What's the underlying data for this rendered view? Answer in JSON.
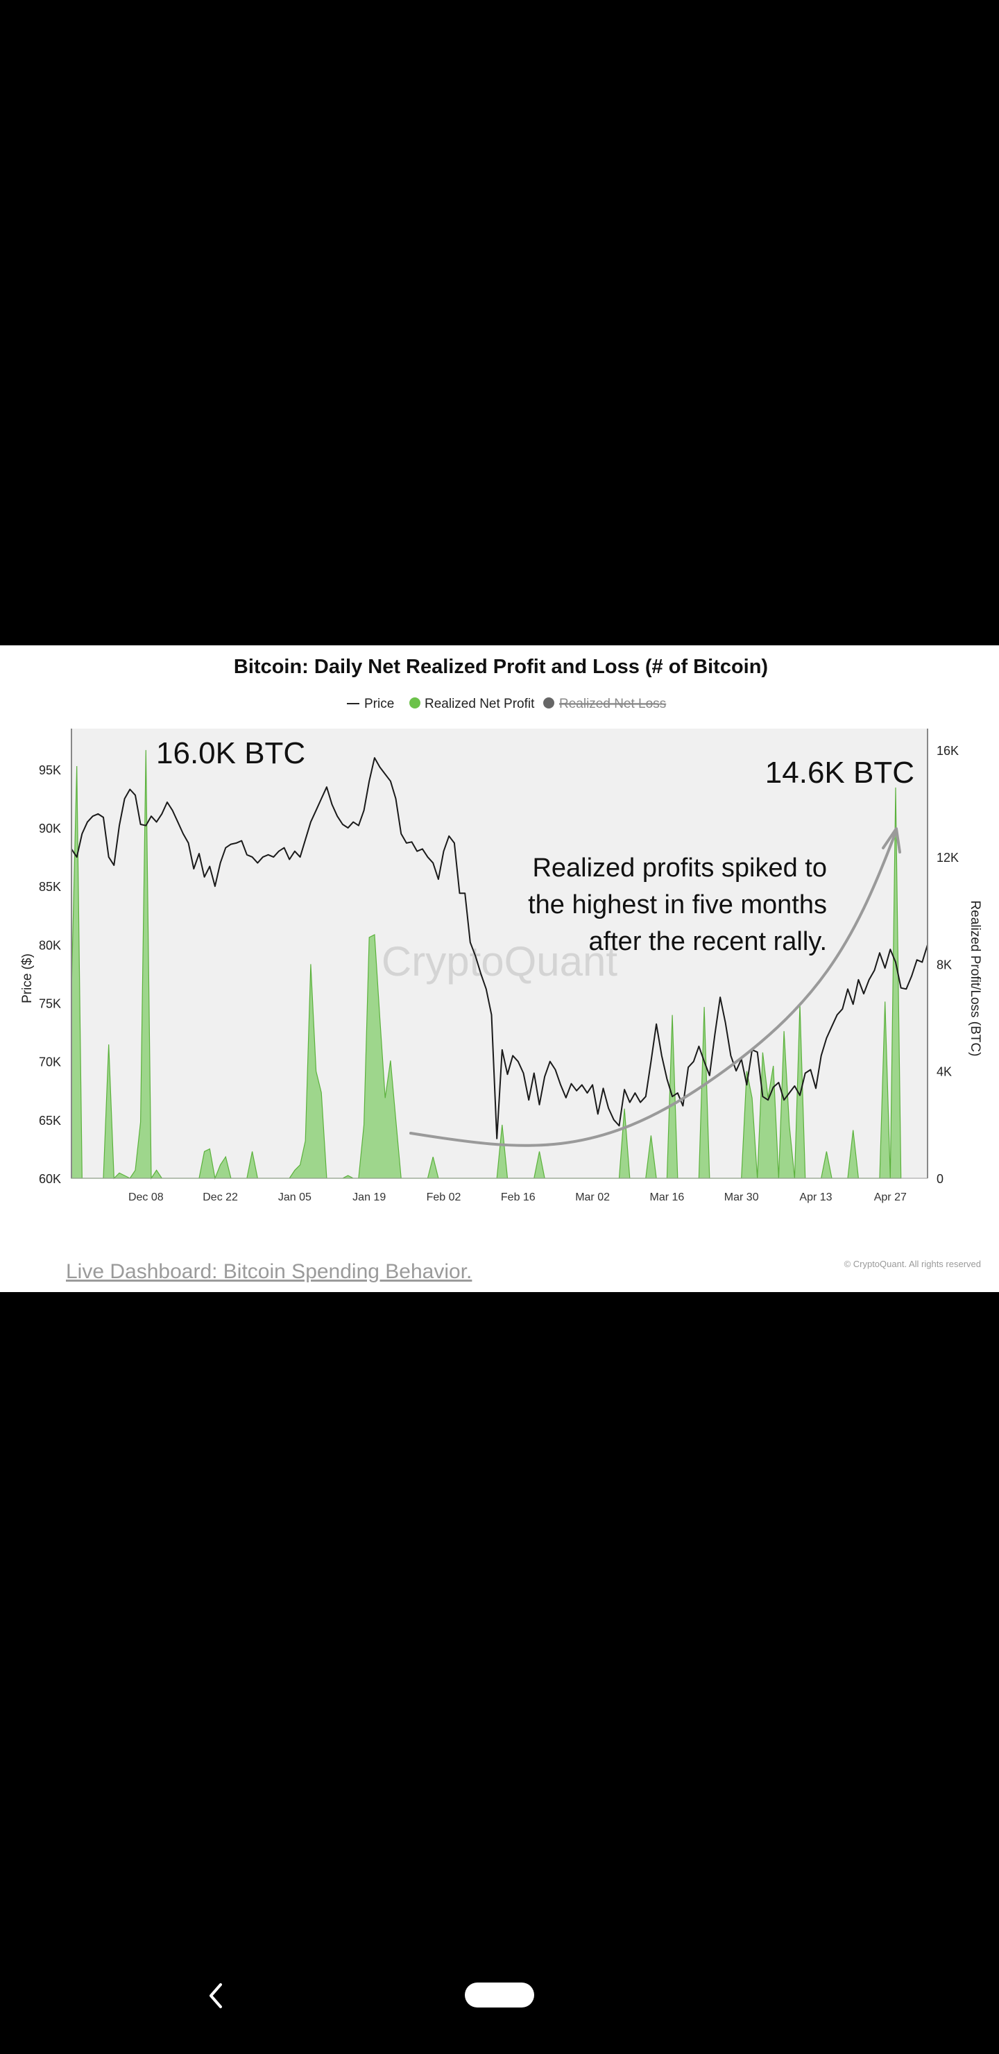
{
  "chart_data": {
    "type": "line+area",
    "title": "Bitcoin: Daily Net Realized Profit and Loss (# of Bitcoin)",
    "legend": [
      {
        "label": "Price",
        "marker": "line",
        "color": "#222222"
      },
      {
        "label": "Realized Net Profit",
        "marker": "dot",
        "color": "#6cc24a"
      },
      {
        "label": "Realized Net Loss",
        "marker": "dot",
        "color": "#666666",
        "hidden": true
      }
    ],
    "watermark": "CryptoQuant",
    "ylabel_left": "Price ($)",
    "ylabel_right": "Realized Profit/Loss (BTC)",
    "y_left_ticks": [
      "95K",
      "90K",
      "85K",
      "80K",
      "75K",
      "70K",
      "65K",
      "60K"
    ],
    "y_left_range": [
      60000,
      98500
    ],
    "y_right_ticks": [
      "16K",
      "12K",
      "8K",
      "4K",
      "0"
    ],
    "y_right_range": [
      0,
      16800
    ],
    "x_ticks": [
      "Dec 08",
      "Dec 22",
      "Jan 05",
      "Jan 19",
      "Feb 02",
      "Feb 16",
      "Mar 02",
      "Mar 16",
      "Mar 30",
      "Apr 13",
      "Apr 27"
    ],
    "x_range_days": [
      -14,
      147
    ],
    "price": [
      [
        -14,
        88200
      ],
      [
        -13,
        87500
      ],
      [
        -12,
        89500
      ],
      [
        -11,
        90500
      ],
      [
        -10,
        91000
      ],
      [
        -9,
        91200
      ],
      [
        -8,
        90900
      ],
      [
        -7,
        87500
      ],
      [
        -6,
        86800
      ],
      [
        -5,
        90200
      ],
      [
        -4,
        92500
      ],
      [
        -3,
        93300
      ],
      [
        -2,
        92800
      ],
      [
        -1,
        90300
      ],
      [
        0,
        90200
      ],
      [
        1,
        91000
      ],
      [
        2,
        90500
      ],
      [
        3,
        91200
      ],
      [
        4,
        92200
      ],
      [
        5,
        91500
      ],
      [
        6,
        90500
      ],
      [
        7,
        89500
      ],
      [
        8,
        88700
      ],
      [
        9,
        86500
      ],
      [
        10,
        87800
      ],
      [
        11,
        85800
      ],
      [
        12,
        86700
      ],
      [
        13,
        85000
      ],
      [
        14,
        87000
      ],
      [
        15,
        88300
      ],
      [
        16,
        88600
      ],
      [
        17,
        88700
      ],
      [
        18,
        88900
      ],
      [
        19,
        87700
      ],
      [
        20,
        87500
      ],
      [
        21,
        87000
      ],
      [
        22,
        87500
      ],
      [
        23,
        87700
      ],
      [
        24,
        87500
      ],
      [
        25,
        88000
      ],
      [
        26,
        88300
      ],
      [
        27,
        87300
      ],
      [
        28,
        88000
      ],
      [
        29,
        87500
      ],
      [
        30,
        89000
      ],
      [
        31,
        90500
      ],
      [
        32,
        91500
      ],
      [
        33,
        92500
      ],
      [
        34,
        93500
      ],
      [
        35,
        92000
      ],
      [
        36,
        91000
      ],
      [
        37,
        90300
      ],
      [
        38,
        90000
      ],
      [
        39,
        90500
      ],
      [
        40,
        90200
      ],
      [
        41,
        91500
      ],
      [
        42,
        94000
      ],
      [
        43,
        96000
      ],
      [
        44,
        95200
      ],
      [
        45,
        94600
      ],
      [
        46,
        94000
      ],
      [
        47,
        92500
      ],
      [
        48,
        89500
      ],
      [
        49,
        88700
      ],
      [
        50,
        88800
      ],
      [
        51,
        88000
      ],
      [
        52,
        88200
      ],
      [
        53,
        87500
      ],
      [
        54,
        87000
      ],
      [
        55,
        85600
      ],
      [
        56,
        88000
      ],
      [
        57,
        89300
      ],
      [
        58,
        88700
      ],
      [
        59,
        84400
      ],
      [
        60,
        84400
      ],
      [
        61,
        80200
      ],
      [
        62,
        79000
      ],
      [
        63,
        77500
      ],
      [
        64,
        76200
      ],
      [
        65,
        74000
      ],
      [
        66,
        63400
      ],
      [
        67,
        71000
      ],
      [
        68,
        68900
      ],
      [
        69,
        70500
      ],
      [
        70,
        70000
      ],
      [
        71,
        69000
      ],
      [
        72,
        66700
      ],
      [
        73,
        69000
      ],
      [
        74,
        66300
      ],
      [
        75,
        68700
      ],
      [
        76,
        70000
      ],
      [
        77,
        69300
      ],
      [
        78,
        68000
      ],
      [
        79,
        66900
      ],
      [
        80,
        68100
      ],
      [
        81,
        67500
      ],
      [
        82,
        68000
      ],
      [
        83,
        67300
      ],
      [
        84,
        68000
      ],
      [
        85,
        65500
      ],
      [
        86,
        67700
      ],
      [
        87,
        66000
      ],
      [
        88,
        65000
      ],
      [
        89,
        64500
      ],
      [
        90,
        67600
      ],
      [
        91,
        66500
      ],
      [
        92,
        67300
      ],
      [
        93,
        66500
      ],
      [
        94,
        67000
      ],
      [
        95,
        70000
      ],
      [
        96,
        73200
      ],
      [
        97,
        70500
      ],
      [
        98,
        68500
      ],
      [
        99,
        67000
      ],
      [
        100,
        67300
      ],
      [
        101,
        66200
      ],
      [
        102,
        69500
      ],
      [
        103,
        70000
      ],
      [
        104,
        71300
      ],
      [
        105,
        70000
      ],
      [
        106,
        68800
      ],
      [
        107,
        72300
      ],
      [
        108,
        75500
      ],
      [
        109,
        73300
      ],
      [
        110,
        70500
      ],
      [
        111,
        69200
      ],
      [
        112,
        70200
      ],
      [
        113,
        68000
      ],
      [
        114,
        71000
      ],
      [
        115,
        70800
      ],
      [
        116,
        67000
      ],
      [
        117,
        66700
      ],
      [
        118,
        67800
      ],
      [
        119,
        68200
      ],
      [
        120,
        66700
      ],
      [
        121,
        67300
      ],
      [
        122,
        67900
      ],
      [
        123,
        67100
      ],
      [
        124,
        69000
      ],
      [
        125,
        69300
      ],
      [
        126,
        67700
      ],
      [
        127,
        70500
      ],
      [
        128,
        72000
      ],
      [
        129,
        73000
      ],
      [
        130,
        74000
      ],
      [
        131,
        74500
      ],
      [
        132,
        76200
      ],
      [
        133,
        74900
      ],
      [
        134,
        77000
      ],
      [
        135,
        75800
      ],
      [
        136,
        77000
      ],
      [
        137,
        77800
      ],
      [
        138,
        79300
      ],
      [
        139,
        78000
      ],
      [
        140,
        79600
      ],
      [
        141,
        78500
      ],
      [
        142,
        76300
      ],
      [
        143,
        76200
      ],
      [
        144,
        77300
      ],
      [
        145,
        78700
      ],
      [
        146,
        78500
      ],
      [
        147,
        80000
      ]
    ],
    "realized_net_profit": [
      [
        -14,
        7000
      ],
      [
        -13,
        15400
      ],
      [
        -12,
        0
      ],
      [
        -8,
        0
      ],
      [
        -7,
        5000
      ],
      [
        -6,
        0
      ],
      [
        -5,
        200
      ],
      [
        -4,
        100
      ],
      [
        -3,
        0
      ],
      [
        -2,
        300
      ],
      [
        -1,
        2100
      ],
      [
        0,
        16000
      ],
      [
        1,
        0
      ],
      [
        2,
        300
      ],
      [
        3,
        0
      ],
      [
        10,
        0
      ],
      [
        11,
        1000
      ],
      [
        12,
        1100
      ],
      [
        13,
        0
      ],
      [
        14,
        500
      ],
      [
        15,
        800
      ],
      [
        16,
        0
      ],
      [
        19,
        0
      ],
      [
        20,
        1000
      ],
      [
        21,
        0
      ],
      [
        27,
        0
      ],
      [
        28,
        300
      ],
      [
        29,
        500
      ],
      [
        30,
        1400
      ],
      [
        31,
        8000
      ],
      [
        32,
        4000
      ],
      [
        33,
        3200
      ],
      [
        34,
        0
      ],
      [
        37,
        0
      ],
      [
        38,
        100
      ],
      [
        39,
        0
      ],
      [
        40,
        0
      ],
      [
        41,
        2000
      ],
      [
        42,
        9000
      ],
      [
        43,
        9100
      ],
      [
        44,
        6000
      ],
      [
        45,
        3000
      ],
      [
        46,
        4400
      ],
      [
        47,
        2200
      ],
      [
        48,
        0
      ],
      [
        53,
        0
      ],
      [
        54,
        800
      ],
      [
        55,
        0
      ],
      [
        66,
        0
      ],
      [
        67,
        2000
      ],
      [
        68,
        0
      ],
      [
        73,
        0
      ],
      [
        74,
        1000
      ],
      [
        75,
        0
      ],
      [
        89,
        0
      ],
      [
        90,
        2600
      ],
      [
        91,
        0
      ],
      [
        94,
        0
      ],
      [
        95,
        1600
      ],
      [
        96,
        0
      ],
      [
        98,
        0
      ],
      [
        99,
        6100
      ],
      [
        100,
        0
      ],
      [
        104,
        0
      ],
      [
        105,
        6400
      ],
      [
        106,
        0
      ],
      [
        112,
        0
      ],
      [
        113,
        4000
      ],
      [
        114,
        3000
      ],
      [
        115,
        0
      ],
      [
        116,
        4700
      ],
      [
        117,
        3000
      ],
      [
        118,
        4200
      ],
      [
        119,
        0
      ],
      [
        120,
        5500
      ],
      [
        121,
        2000
      ],
      [
        122,
        0
      ],
      [
        123,
        6500
      ],
      [
        124,
        0
      ],
      [
        127,
        0
      ],
      [
        128,
        1000
      ],
      [
        129,
        0
      ],
      [
        132,
        0
      ],
      [
        133,
        1800
      ],
      [
        134,
        0
      ],
      [
        138,
        0
      ],
      [
        139,
        6600
      ],
      [
        140,
        0
      ],
      [
        141,
        14600
      ],
      [
        142,
        0
      ]
    ],
    "annotations": [
      {
        "text": "16.0K BTC"
      },
      {
        "text": "14.6K BTC"
      },
      {
        "lines": [
          "Realized profits spiked to",
          "the highest in five months",
          "after the recent rally."
        ]
      }
    ]
  },
  "footer": {
    "link_text": "Live Dashboard: Bitcoin Spending Behavior.",
    "credit": "© CryptoQuant. All rights reserved"
  }
}
